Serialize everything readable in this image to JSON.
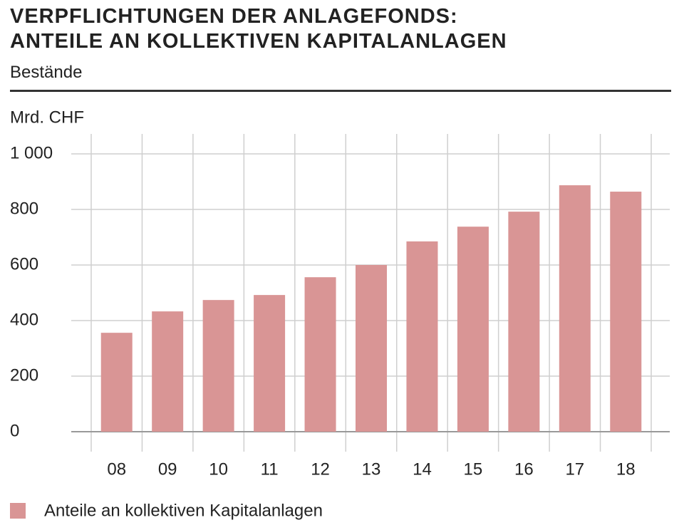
{
  "chart_data": {
    "type": "bar",
    "title": "VERPFLICHTUNGEN DER ANLAGEFONDS:\nANTEILE AN KOLLEKTIVEN KAPITALANLAGEN",
    "subtitle": "Bestände",
    "y_label": "Mrd. CHF",
    "categories": [
      "08",
      "09",
      "10",
      "11",
      "12",
      "13",
      "14",
      "15",
      "16",
      "17",
      "18"
    ],
    "series": [
      {
        "name": "Anteile an kollektiven Kapitalanlagen",
        "color": "#d99595",
        "values": [
          356,
          433,
          474,
          492,
          556,
          600,
          685,
          738,
          792,
          887,
          864
        ]
      }
    ],
    "ylim": [
      0,
      1000
    ],
    "yticks": [
      0,
      200,
      400,
      600,
      800,
      {
        "value": 1000,
        "label": "1 000"
      }
    ],
    "grid": true
  }
}
